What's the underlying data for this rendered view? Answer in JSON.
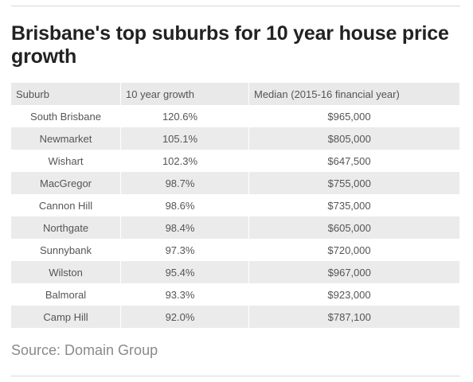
{
  "title": "Brisbane's top suburbs for 10 year house price growth",
  "table": {
    "headers": [
      "Suburb",
      "10 year growth",
      "Median (2015-16 financial year)"
    ],
    "rows": [
      [
        "South Brisbane",
        "120.6%",
        "$965,000"
      ],
      [
        "Newmarket",
        "105.1%",
        "$805,000"
      ],
      [
        "Wishart",
        "102.3%",
        "$647,500"
      ],
      [
        "MacGregor",
        "98.7%",
        "$755,000"
      ],
      [
        "Cannon Hill",
        "98.6%",
        "$735,000"
      ],
      [
        "Northgate",
        "98.4%",
        "$605,000"
      ],
      [
        "Sunnybank",
        "97.3%",
        "$720,000"
      ],
      [
        "Wilston",
        "95.4%",
        "$967,000"
      ],
      [
        "Balmoral",
        "93.3%",
        "$923,000"
      ],
      [
        "Camp Hill",
        "92.0%",
        "$787,100"
      ]
    ]
  },
  "source": "Source: Domain Group",
  "colors": {
    "header_bg": "#e9e9e9",
    "stripe_bg": "#ebebeb",
    "rule": "#d9d9d9"
  }
}
